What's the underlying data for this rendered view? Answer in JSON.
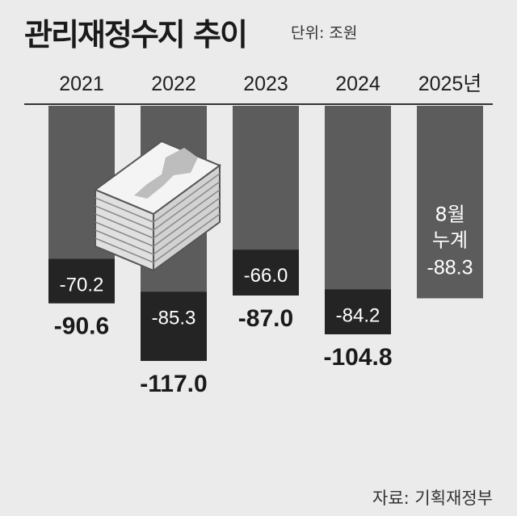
{
  "header": {
    "title": "관리재정수지 추이",
    "unit": "단위: 조원"
  },
  "footer": {
    "source": "자료: 기획재정부"
  },
  "colors": {
    "background": "#ebebeb",
    "bar_total": "#5c5c5c",
    "bar_partial": "#242424",
    "label_light": "#ffffff",
    "label_dark": "#1a1a1a"
  },
  "chart_data": {
    "type": "bar",
    "title": "관리재정수지 추이",
    "unit": "단위: 조원",
    "categories": [
      "2021",
      "2022",
      "2023",
      "2024",
      "2025년"
    ],
    "series": [
      {
        "values": [
          -90.6,
          -117.0,
          -87.0,
          -104.8,
          -88.3
        ]
      },
      {
        "values": [
          -70.2,
          -85.3,
          -66.0,
          -84.2,
          null
        ]
      }
    ],
    "total_labels": [
      "-90.6",
      "-117.0",
      "-87.0",
      "-104.8",
      "-88.3"
    ],
    "partial_labels": [
      "-70.2",
      "-85.3",
      "-66.0",
      "-84.2",
      null
    ],
    "annotation_2025": [
      "8월",
      "누계"
    ],
    "grid": false,
    "legend": "none"
  }
}
